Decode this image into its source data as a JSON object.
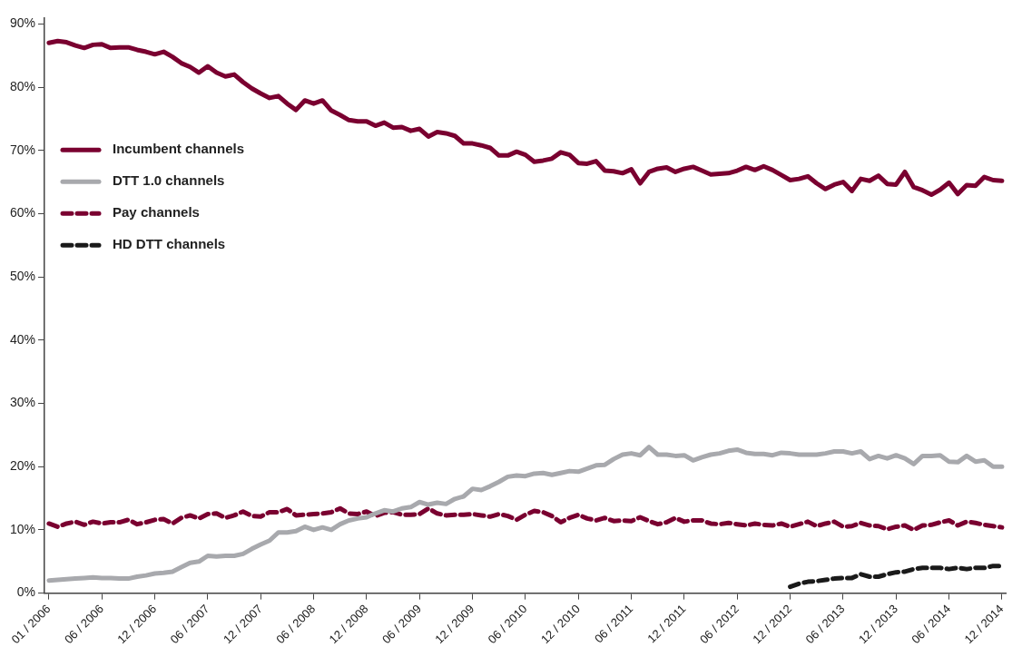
{
  "chart_data": {
    "type": "line",
    "categories": [
      "01 / 2006",
      null,
      null,
      null,
      null,
      null,
      "06 / 2006",
      null,
      null,
      null,
      null,
      null,
      "12 / 2006",
      null,
      null,
      null,
      null,
      null,
      "06 / 2007",
      null,
      null,
      null,
      null,
      null,
      "12 / 2007",
      null,
      null,
      null,
      null,
      null,
      "06 / 2008",
      null,
      null,
      null,
      null,
      null,
      "12 / 2008",
      null,
      null,
      null,
      null,
      null,
      "06 / 2009",
      null,
      null,
      null,
      null,
      null,
      "12 / 2009",
      null,
      null,
      null,
      null,
      null,
      "06 / 2010",
      null,
      null,
      null,
      null,
      null,
      "12 / 2010",
      null,
      null,
      null,
      null,
      null,
      "06 / 2011",
      null,
      null,
      null,
      null,
      null,
      "12 / 2011",
      null,
      null,
      null,
      null,
      null,
      "06 / 2012",
      null,
      null,
      null,
      null,
      null,
      "12 / 2012",
      null,
      null,
      null,
      null,
      null,
      "06 / 2013",
      null,
      null,
      null,
      null,
      null,
      "12 / 2013",
      null,
      null,
      null,
      null,
      null,
      "06 / 2014",
      null,
      null,
      null,
      null,
      null,
      "12 / 2014"
    ],
    "series": [
      {
        "name": "Incumbent channels",
        "color": "#7a0030",
        "values": [
          87.0,
          87.3,
          87.1,
          86.6,
          86.2,
          86.7,
          86.8,
          86.2,
          86.3,
          86.3,
          85.9,
          85.6,
          85.2,
          85.6,
          84.8,
          83.8,
          83.2,
          82.3,
          83.3,
          82.3,
          81.7,
          82.0,
          80.8,
          79.8,
          79.0,
          78.3,
          78.6,
          77.4,
          76.4,
          77.9,
          77.4,
          77.9,
          76.3,
          75.6,
          74.8,
          74.6,
          74.6,
          73.9,
          74.4,
          73.6,
          73.7,
          73.1,
          73.4,
          72.2,
          72.9,
          72.7,
          72.3,
          71.1,
          71.1,
          70.8,
          70.4,
          69.2,
          69.2,
          69.8,
          69.3,
          68.2,
          68.4,
          68.7,
          69.7,
          69.3,
          68.0,
          67.9,
          68.3,
          66.8,
          66.7,
          66.4,
          67.0,
          64.8,
          66.6,
          67.1,
          67.3,
          66.6,
          67.1,
          67.4,
          66.8,
          66.2,
          66.3,
          66.4,
          66.8,
          67.4,
          66.9,
          67.5,
          66.9,
          66.1,
          65.3,
          65.5,
          65.9,
          64.8,
          63.9,
          64.6,
          65.0,
          63.6,
          65.5,
          65.2,
          66.0,
          64.7,
          64.6,
          66.6,
          64.2,
          63.7,
          63.0,
          63.8,
          64.9,
          63.1,
          64.5,
          64.4,
          65.8,
          65.3,
          65.2
        ]
      },
      {
        "name": "DTT 1.0 channels",
        "color": "#a8a9ad",
        "values": [
          2.0,
          2.1,
          2.2,
          2.3,
          2.4,
          2.5,
          2.4,
          2.4,
          2.3,
          2.3,
          2.6,
          2.8,
          3.1,
          3.2,
          3.4,
          4.1,
          4.8,
          5.0,
          5.9,
          5.8,
          5.9,
          5.9,
          6.2,
          7.0,
          7.7,
          8.3,
          9.6,
          9.6,
          9.8,
          10.5,
          10.0,
          10.4,
          10.0,
          10.9,
          11.5,
          11.8,
          12.0,
          12.6,
          13.1,
          12.9,
          13.4,
          13.6,
          14.4,
          14.0,
          14.3,
          14.1,
          14.9,
          15.3,
          16.5,
          16.3,
          16.9,
          17.6,
          18.4,
          18.6,
          18.5,
          18.9,
          19.0,
          18.7,
          19.0,
          19.3,
          19.2,
          19.7,
          20.2,
          20.3,
          21.2,
          21.9,
          22.1,
          21.8,
          23.1,
          21.9,
          21.9,
          21.7,
          21.8,
          21.0,
          21.5,
          21.9,
          22.1,
          22.5,
          22.7,
          22.2,
          22.0,
          22.0,
          21.8,
          22.2,
          22.1,
          21.9,
          21.9,
          21.9,
          22.1,
          22.4,
          22.4,
          22.1,
          22.4,
          21.2,
          21.7,
          21.3,
          21.8,
          21.3,
          20.4,
          21.7,
          21.7,
          21.8,
          20.8,
          20.7,
          21.7,
          20.8,
          21.0,
          20.0,
          20.0
        ]
      },
      {
        "name": "Pay channels",
        "color": "#7a0030",
        "line_style": "dashed",
        "values": [
          11.0,
          10.5,
          11.0,
          11.3,
          10.8,
          11.3,
          11.0,
          11.2,
          11.2,
          11.6,
          10.9,
          11.2,
          11.6,
          11.7,
          11.0,
          11.9,
          12.3,
          11.8,
          12.5,
          12.6,
          11.9,
          12.3,
          12.9,
          12.2,
          12.1,
          12.8,
          12.8,
          13.3,
          12.3,
          12.4,
          12.5,
          12.6,
          12.8,
          13.4,
          12.6,
          12.5,
          12.9,
          12.2,
          12.7,
          12.8,
          12.4,
          12.4,
          12.5,
          13.4,
          12.6,
          12.3,
          12.4,
          12.4,
          12.5,
          12.3,
          12.1,
          12.5,
          12.2,
          11.6,
          12.4,
          13.0,
          12.8,
          12.2,
          11.2,
          11.9,
          12.4,
          11.8,
          11.5,
          11.9,
          11.4,
          11.5,
          11.4,
          12.0,
          11.4,
          10.9,
          11.2,
          11.9,
          11.3,
          11.5,
          11.5,
          11.0,
          10.9,
          11.1,
          10.9,
          10.7,
          11.0,
          10.8,
          10.7,
          11.0,
          10.5,
          10.9,
          11.3,
          10.6,
          11.0,
          11.3,
          10.5,
          10.6,
          11.1,
          10.7,
          10.6,
          10.1,
          10.5,
          10.7,
          10.0,
          10.7,
          10.8,
          11.2,
          11.5,
          10.7,
          11.3,
          11.1,
          10.8,
          10.6,
          10.4
        ]
      },
      {
        "name": "HD DTT channels",
        "color": "#1a1a1a",
        "line_style": "dashed",
        "values": [
          null,
          null,
          null,
          null,
          null,
          null,
          null,
          null,
          null,
          null,
          null,
          null,
          null,
          null,
          null,
          null,
          null,
          null,
          null,
          null,
          null,
          null,
          null,
          null,
          null,
          null,
          null,
          null,
          null,
          null,
          null,
          null,
          null,
          null,
          null,
          null,
          null,
          null,
          null,
          null,
          null,
          null,
          null,
          null,
          null,
          null,
          null,
          null,
          null,
          null,
          null,
          null,
          null,
          null,
          null,
          null,
          null,
          null,
          null,
          null,
          null,
          null,
          null,
          null,
          null,
          null,
          null,
          null,
          null,
          null,
          null,
          null,
          null,
          null,
          null,
          null,
          null,
          null,
          null,
          null,
          null,
          null,
          null,
          null,
          1.0,
          1.5,
          1.8,
          1.9,
          2.1,
          2.3,
          2.4,
          2.4,
          3.0,
          2.6,
          2.6,
          3.0,
          3.3,
          3.4,
          3.8,
          4.0,
          4.0,
          4.0,
          3.8,
          4.0,
          3.8,
          4.0,
          4.0,
          4.3,
          4.3
        ]
      }
    ],
    "ylim": [
      0,
      91
    ],
    "yticks": [
      {
        "value": 0,
        "label": "0%"
      },
      {
        "value": 10,
        "label": "10%"
      },
      {
        "value": 20,
        "label": "20%"
      },
      {
        "value": 30,
        "label": "30%"
      },
      {
        "value": 40,
        "label": "40%"
      },
      {
        "value": 50,
        "label": "50%"
      },
      {
        "value": 60,
        "label": "60%"
      },
      {
        "value": 70,
        "label": "70%"
      },
      {
        "value": 80,
        "label": "80%"
      },
      {
        "value": 90,
        "label": "90%"
      }
    ],
    "grid": false,
    "legend": "left",
    "marker": "none"
  }
}
